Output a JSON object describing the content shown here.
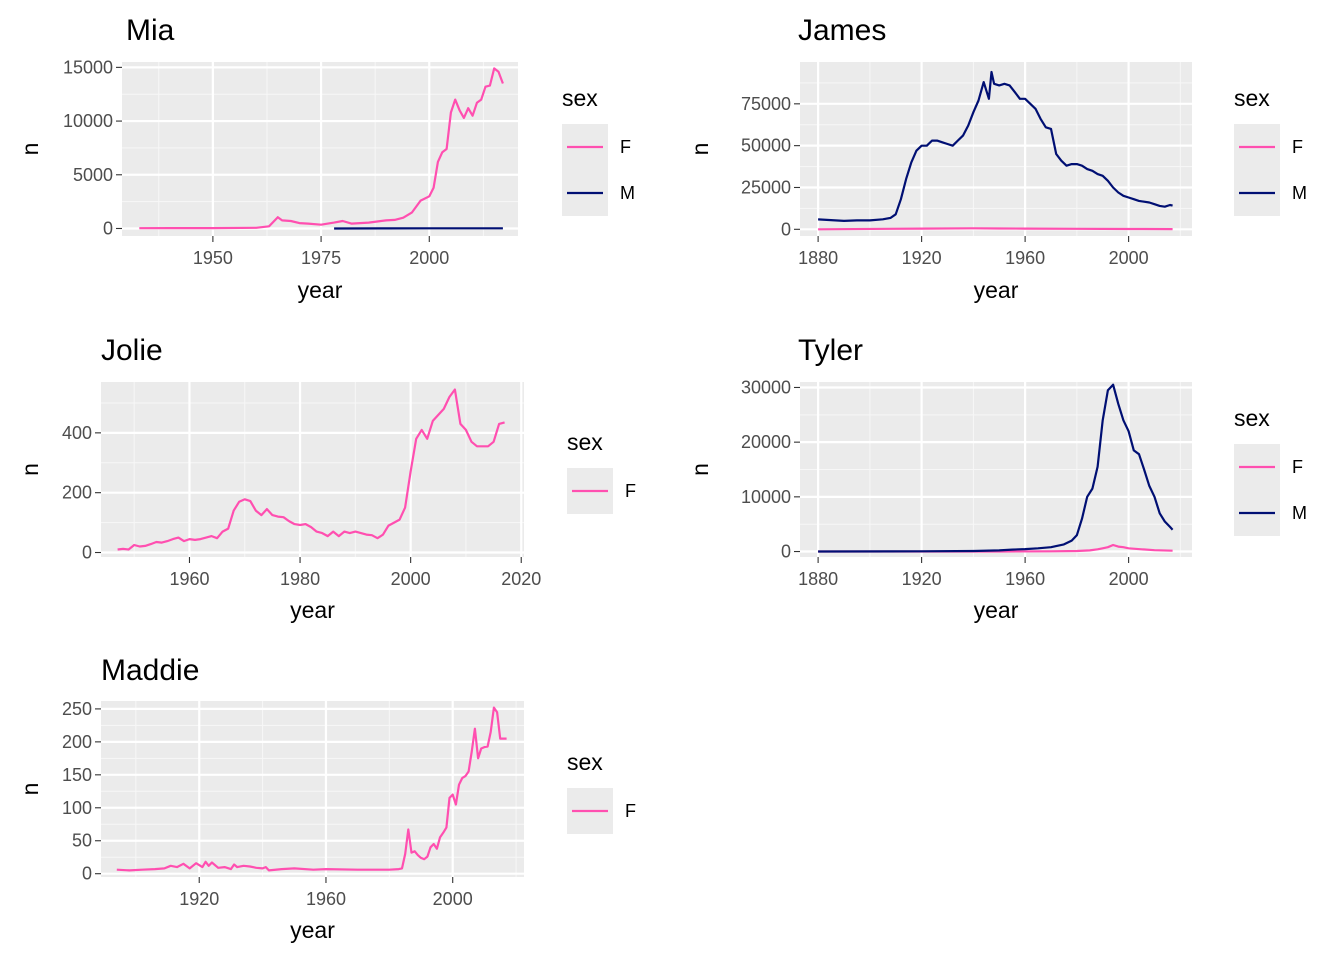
{
  "chart_data": [
    {
      "type": "line",
      "title": "Mia",
      "xlabel": "year",
      "ylabel": "n",
      "xlim": [
        1929,
        2020.5
      ],
      "ylim": [
        -700,
        15500
      ],
      "x_ticks": [
        1950,
        1975,
        2000
      ],
      "y_ticks": [
        0,
        5000,
        10000,
        15000
      ],
      "grid": true,
      "legend": {
        "title": "sex",
        "position": "right",
        "entries": [
          "F",
          "M"
        ]
      },
      "series": [
        {
          "name": "F",
          "color": "#ff4fb0",
          "x": [
            1933,
            1940,
            1950,
            1960,
            1963,
            1965,
            1966,
            1968,
            1970,
            1972,
            1975,
            1978,
            1980,
            1982,
            1984,
            1986,
            1988,
            1990,
            1992,
            1994,
            1996,
            1998,
            2000,
            2001,
            2002,
            2003,
            2004,
            2005,
            2006,
            2007,
            2008,
            2009,
            2010,
            2011,
            2012,
            2013,
            2014,
            2015,
            2016,
            2017
          ],
          "y": [
            30,
            35,
            40,
            60,
            200,
            1050,
            750,
            700,
            500,
            450,
            350,
            550,
            700,
            450,
            500,
            550,
            650,
            750,
            800,
            1000,
            1500,
            2600,
            3000,
            3800,
            6200,
            7100,
            7400,
            10800,
            12000,
            11000,
            10300,
            11200,
            10500,
            11700,
            12000,
            13200,
            13300,
            14900,
            14600,
            13500
          ]
        },
        {
          "name": "M",
          "color": "#000f73",
          "x": [
            1978,
            1990,
            2000,
            2010,
            2017
          ],
          "y": [
            0,
            5,
            15,
            20,
            20
          ]
        }
      ]
    },
    {
      "type": "line",
      "title": "James",
      "xlabel": "year",
      "ylabel": "n",
      "xlim": [
        1873,
        2024.5
      ],
      "ylim": [
        -4000,
        100000
      ],
      "x_ticks": [
        1880,
        1920,
        1960,
        2000
      ],
      "y_ticks": [
        0,
        25000,
        50000,
        75000
      ],
      "grid": true,
      "legend": {
        "title": "sex",
        "position": "right",
        "entries": [
          "F",
          "M"
        ]
      },
      "series": [
        {
          "name": "F",
          "color": "#ff4fb0",
          "x": [
            1880,
            1920,
            1940,
            1950,
            1960,
            1980,
            2000,
            2017
          ],
          "y": [
            20,
            400,
            600,
            500,
            400,
            300,
            200,
            100
          ]
        },
        {
          "name": "M",
          "color": "#000f73",
          "x": [
            1880,
            1885,
            1890,
            1895,
            1900,
            1905,
            1908,
            1910,
            1912,
            1914,
            1916,
            1918,
            1920,
            1922,
            1924,
            1926,
            1928,
            1930,
            1932,
            1934,
            1936,
            1938,
            1940,
            1942,
            1944,
            1946,
            1947,
            1948,
            1950,
            1952,
            1954,
            1956,
            1958,
            1960,
            1962,
            1964,
            1966,
            1968,
            1970,
            1972,
            1974,
            1976,
            1978,
            1980,
            1982,
            1984,
            1986,
            1988,
            1990,
            1992,
            1994,
            1996,
            1998,
            2000,
            2002,
            2004,
            2006,
            2008,
            2010,
            2012,
            2014,
            2016,
            2017
          ],
          "y": [
            5900,
            5500,
            5000,
            5300,
            5300,
            6000,
            6800,
            9000,
            18000,
            30000,
            40000,
            47000,
            50000,
            50000,
            53000,
            53000,
            52000,
            51000,
            50000,
            53000,
            56000,
            62000,
            70000,
            77000,
            88000,
            78000,
            94000,
            87000,
            86000,
            87000,
            86000,
            82000,
            78000,
            78000,
            75000,
            72000,
            66000,
            61000,
            60000,
            45000,
            41000,
            38000,
            39000,
            39000,
            38000,
            36000,
            35000,
            33000,
            32000,
            29000,
            25000,
            22000,
            20000,
            19000,
            18000,
            17000,
            16500,
            16000,
            15000,
            14000,
            13500,
            14500,
            14200
          ]
        }
      ]
    },
    {
      "type": "line",
      "title": "Jolie",
      "xlabel": "year",
      "ylabel": "n",
      "xlim": [
        1944,
        2020.5
      ],
      "ylim": [
        -15,
        570
      ],
      "x_ticks": [
        1960,
        1980,
        2000,
        2020
      ],
      "y_ticks": [
        0,
        200,
        400
      ],
      "grid": true,
      "legend": {
        "title": "sex",
        "position": "right",
        "entries": [
          "F"
        ]
      },
      "series": [
        {
          "name": "F",
          "color": "#ff4fb0",
          "x": [
            1947,
            1948,
            1949,
            1950,
            1951,
            1952,
            1953,
            1954,
            1955,
            1956,
            1957,
            1958,
            1959,
            1960,
            1961,
            1962,
            1963,
            1964,
            1965,
            1966,
            1967,
            1968,
            1969,
            1970,
            1971,
            1972,
            1973,
            1974,
            1975,
            1976,
            1977,
            1978,
            1979,
            1980,
            1981,
            1982,
            1983,
            1984,
            1985,
            1986,
            1987,
            1988,
            1989,
            1990,
            1991,
            1992,
            1993,
            1994,
            1995,
            1996,
            1997,
            1998,
            1999,
            2000,
            2001,
            2002,
            2003,
            2004,
            2005,
            2006,
            2007,
            2008,
            2009,
            2010,
            2011,
            2012,
            2013,
            2014,
            2015,
            2016,
            2017
          ],
          "y": [
            10,
            12,
            10,
            25,
            20,
            22,
            28,
            35,
            33,
            38,
            45,
            50,
            38,
            45,
            42,
            45,
            50,
            55,
            48,
            70,
            80,
            140,
            170,
            178,
            172,
            140,
            125,
            145,
            125,
            120,
            118,
            105,
            95,
            92,
            95,
            85,
            70,
            65,
            55,
            70,
            55,
            70,
            65,
            70,
            65,
            60,
            58,
            48,
            60,
            90,
            100,
            110,
            150,
            270,
            380,
            410,
            380,
            440,
            460,
            480,
            520,
            545,
            430,
            410,
            370,
            355,
            355,
            355,
            370,
            430,
            435
          ]
        }
      ]
    },
    {
      "type": "line",
      "title": "Tyler",
      "xlabel": "year",
      "ylabel": "n",
      "xlim": [
        1873,
        2024.5
      ],
      "ylim": [
        -1000,
        31000
      ],
      "x_ticks": [
        1880,
        1920,
        1960,
        2000
      ],
      "y_ticks": [
        0,
        10000,
        20000,
        30000
      ],
      "grid": true,
      "legend": {
        "title": "sex",
        "position": "right",
        "entries": [
          "F",
          "M"
        ]
      },
      "series": [
        {
          "name": "F",
          "color": "#ff4fb0",
          "x": [
            1880,
            1950,
            1970,
            1980,
            1985,
            1988,
            1990,
            1992,
            1994,
            1996,
            1998,
            2000,
            2005,
            2010,
            2017
          ],
          "y": [
            0,
            10,
            50,
            100,
            200,
            400,
            600,
            800,
            1200,
            900,
            800,
            600,
            400,
            250,
            150
          ]
        },
        {
          "name": "M",
          "color": "#000f73",
          "x": [
            1880,
            1920,
            1940,
            1950,
            1955,
            1960,
            1965,
            1970,
            1972,
            1975,
            1978,
            1980,
            1982,
            1984,
            1986,
            1988,
            1990,
            1992,
            1994,
            1996,
            1998,
            2000,
            2002,
            2004,
            2006,
            2008,
            2010,
            2012,
            2014,
            2016,
            2017
          ],
          "y": [
            0,
            50,
            100,
            200,
            350,
            450,
            600,
            800,
            1000,
            1300,
            2000,
            3000,
            6000,
            10000,
            11500,
            15500,
            24000,
            29500,
            30500,
            27000,
            24000,
            22000,
            18500,
            17800,
            15000,
            12000,
            10000,
            7000,
            5500,
            4500,
            4000
          ]
        }
      ]
    },
    {
      "type": "line",
      "title": "Maddie",
      "xlabel": "year",
      "ylabel": "n",
      "xlim": [
        1889,
        2022.5
      ],
      "ylim": [
        -5,
        262
      ],
      "x_ticks": [
        1920,
        1960,
        2000
      ],
      "y_ticks": [
        0,
        50,
        100,
        150,
        200,
        250
      ],
      "grid": true,
      "legend": {
        "title": "sex",
        "position": "right",
        "entries": [
          "F"
        ]
      },
      "series": [
        {
          "name": "F",
          "color": "#ff4fb0",
          "x": [
            1894,
            1898,
            1902,
            1906,
            1909,
            1911,
            1913,
            1915,
            1917,
            1919,
            1921,
            1922,
            1923,
            1924,
            1926,
            1928,
            1930,
            1931,
            1932,
            1934,
            1936,
            1938,
            1940,
            1941,
            1942,
            1946,
            1950,
            1956,
            1960,
            1970,
            1980,
            1983,
            1984,
            1985,
            1986,
            1987,
            1988,
            1989,
            1990,
            1991,
            1992,
            1993,
            1994,
            1995,
            1996,
            1997,
            1998,
            1999,
            2000,
            2001,
            2002,
            2003,
            2004,
            2005,
            2006,
            2007,
            2008,
            2009,
            2010,
            2011,
            2012,
            2013,
            2014,
            2015,
            2016,
            2017
          ],
          "y": [
            6,
            5,
            6,
            7,
            8,
            12,
            10,
            15,
            8,
            16,
            10,
            18,
            12,
            17,
            9,
            10,
            7,
            14,
            10,
            12,
            11,
            9,
            8,
            10,
            5,
            7,
            8,
            6,
            7,
            6,
            6,
            7,
            8,
            30,
            67,
            32,
            34,
            28,
            24,
            22,
            26,
            40,
            45,
            38,
            55,
            62,
            70,
            115,
            120,
            105,
            135,
            145,
            148,
            155,
            185,
            220,
            175,
            190,
            192,
            193,
            215,
            252,
            245,
            205,
            205,
            205
          ]
        }
      ]
    }
  ]
}
